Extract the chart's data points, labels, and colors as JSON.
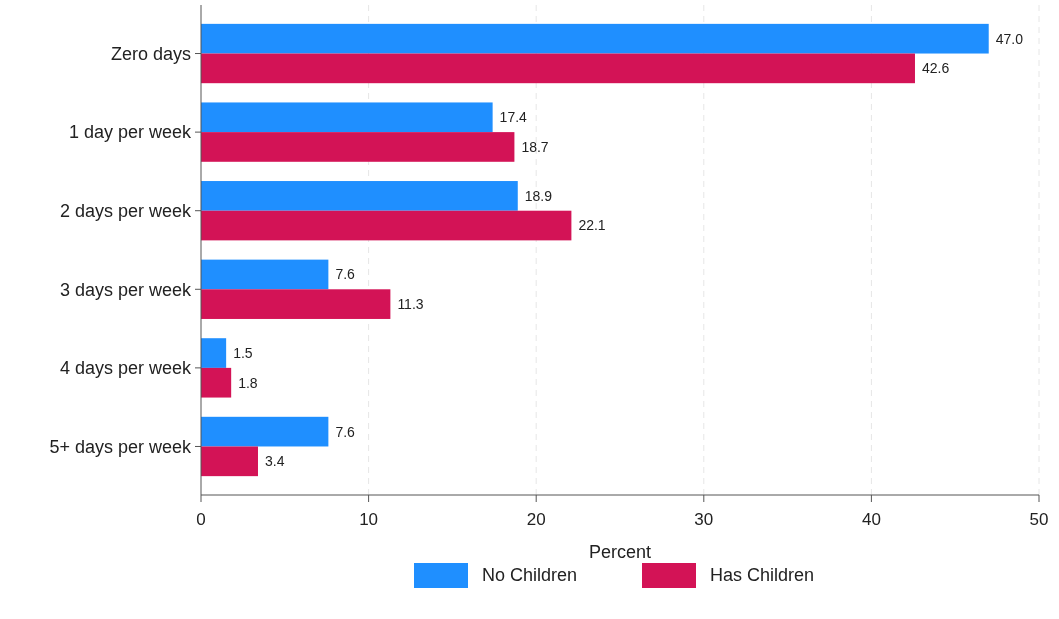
{
  "chart_data": {
    "type": "bar",
    "orientation": "horizontal",
    "xlabel": "Percent",
    "categories": [
      "Zero days",
      "1 day per week",
      "2 days per week",
      "3 days per week",
      "4 days per week",
      "5+ days per week"
    ],
    "series": [
      {
        "name": "No Children",
        "color": "#1f8fff",
        "values": [
          47.0,
          17.4,
          18.9,
          7.6,
          1.5,
          7.6
        ],
        "value_labels": [
          "47.0",
          "17.4",
          "18.9",
          "7.6",
          "1.5",
          "7.6"
        ]
      },
      {
        "name": "Has Children",
        "color": "#d31356",
        "values": [
          42.6,
          18.7,
          22.1,
          11.3,
          1.8,
          3.4
        ],
        "value_labels": [
          "42.6",
          "18.7",
          "22.1",
          "11.3",
          "1.8",
          "3.4"
        ]
      }
    ],
    "xlim": [
      0,
      50
    ],
    "xticks": [
      0,
      10,
      20,
      30,
      40,
      50
    ],
    "grid": "x",
    "legend": "bottom"
  }
}
